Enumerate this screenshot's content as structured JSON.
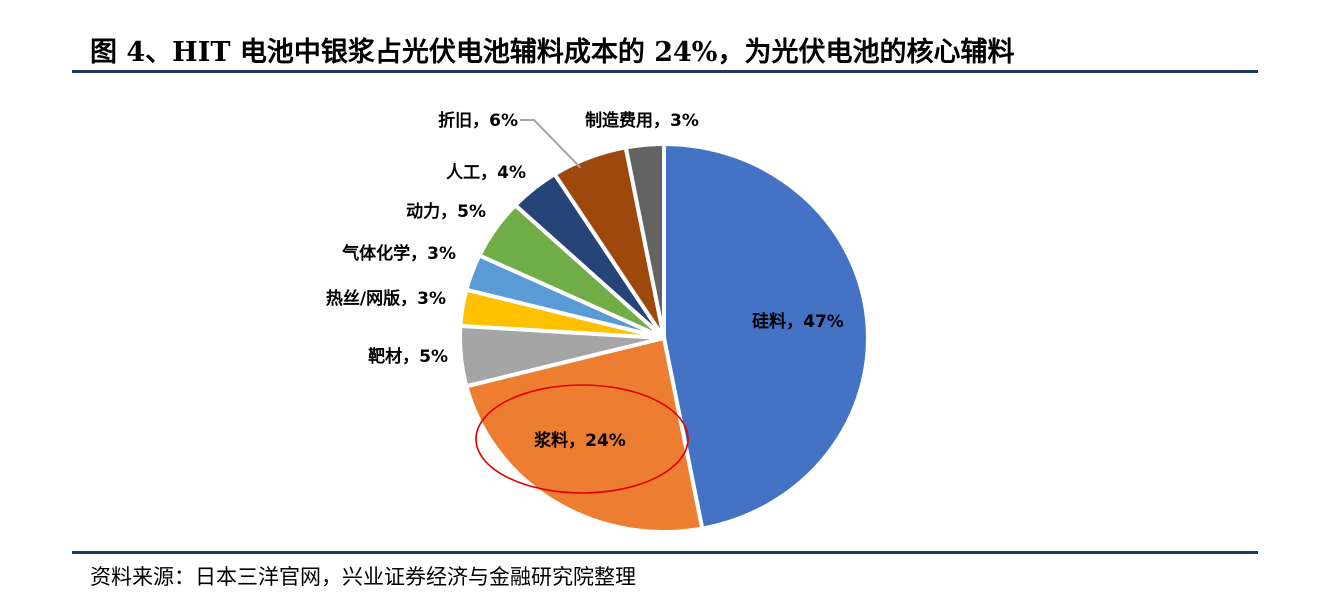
{
  "title": "图 4、HIT 电池中银浆占光伏电池辅料成本的 24%，为光伏电池的核心辅料",
  "source": "资料来源：日本三洋官网，兴业证券经济与金融研究院整理",
  "chart_data": {
    "type": "pie",
    "slices": [
      {
        "label": "硅料，47%",
        "value": 47,
        "color": "#4472c4"
      },
      {
        "label": "浆料，24%",
        "value": 24,
        "color": "#ed7d31"
      },
      {
        "label": "靶材，5%",
        "value": 5,
        "color": "#a5a5a5"
      },
      {
        "label": "热丝/网版，3%",
        "value": 3,
        "color": "#ffc000"
      },
      {
        "label": "气体化学，3%",
        "value": 3,
        "color": "#5b9bd5"
      },
      {
        "label": "动力，5%",
        "value": 5,
        "color": "#70ad47"
      },
      {
        "label": "人工，4%",
        "value": 4,
        "color": "#264478"
      },
      {
        "label": "折旧，6%",
        "value": 6,
        "color": "#9e480e"
      },
      {
        "label": "制造费用，3%",
        "value": 3,
        "color": "#636363"
      }
    ],
    "highlight": "浆料，24%",
    "highlight_color": "#e00000",
    "legend": "none"
  }
}
